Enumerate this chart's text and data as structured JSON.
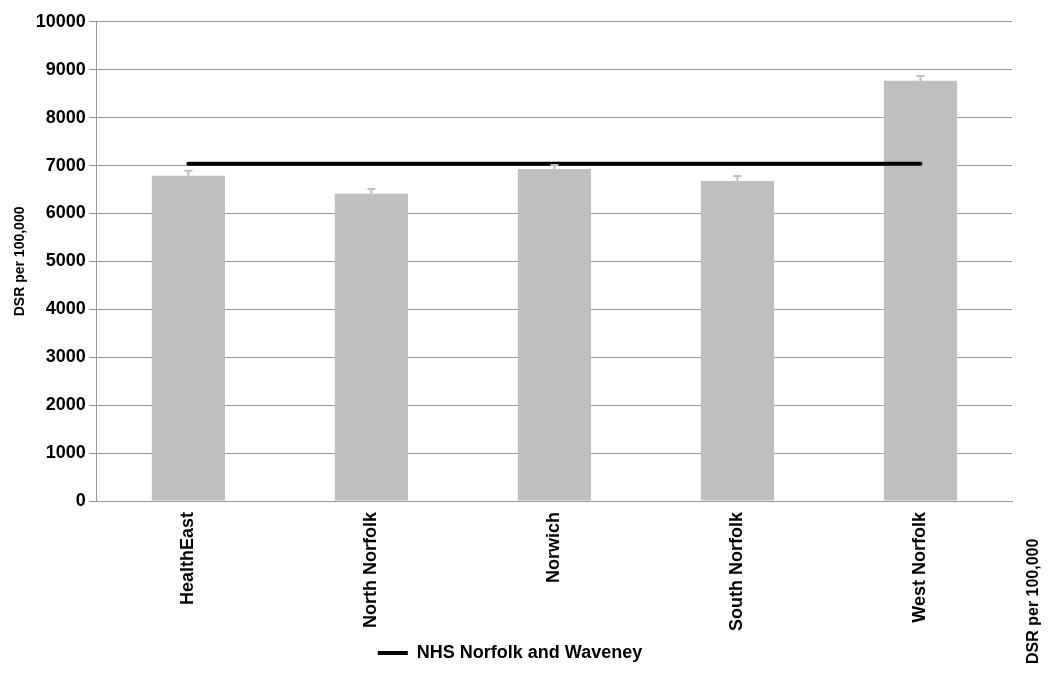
{
  "chart_data": {
    "type": "bar",
    "ylabel": "DSR per 100,000",
    "categories": [
      "HealthEast",
      "North Norfolk",
      "Norwich",
      "South Norfolk",
      "West Norfolk"
    ],
    "series": [
      {
        "color": "#bfbfbf",
        "values": [
          6790,
          6410,
          6930,
          6680,
          8770
        ],
        "errors": [
          100,
          100,
          80,
          100,
          100
        ]
      },
      {
        "type": "line",
        "name": "NHS Norfolk and Waveney",
        "color": "#000000",
        "values": [
          7040,
          7040,
          7040,
          7040,
          7040
        ],
        "marker": "none"
      }
    ],
    "ylim": [
      0,
      10000
    ],
    "yticks": [
      0,
      1000,
      2000,
      3000,
      4000,
      5000,
      6000,
      7000,
      8000,
      9000,
      10000
    ],
    "grid": "y",
    "legend": "bottom",
    "annotations": [
      "DSR per 100,000"
    ]
  }
}
